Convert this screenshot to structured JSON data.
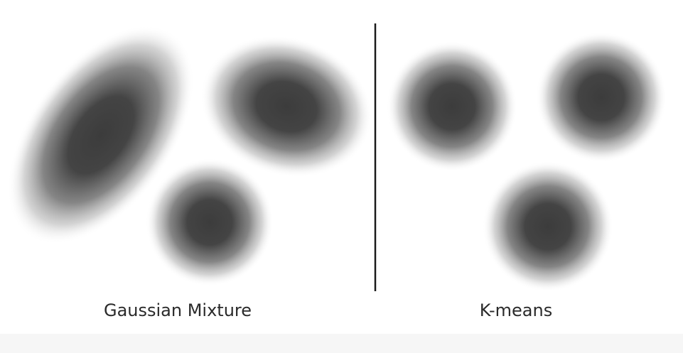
{
  "panels": {
    "left": {
      "label": "Gaussian Mixture",
      "blob_shapes": [
        "elongated-ellipse",
        "ellipse",
        "circle"
      ]
    },
    "right": {
      "label": "K-means",
      "blob_shapes": [
        "circle",
        "circle",
        "circle"
      ]
    }
  },
  "colors": {
    "background": "#ffffff",
    "blob_core": "#3c3c3c",
    "divider": "#1a1a1a",
    "label_text": "#2a2a2a",
    "bottom_band": "#f6f6f6"
  }
}
